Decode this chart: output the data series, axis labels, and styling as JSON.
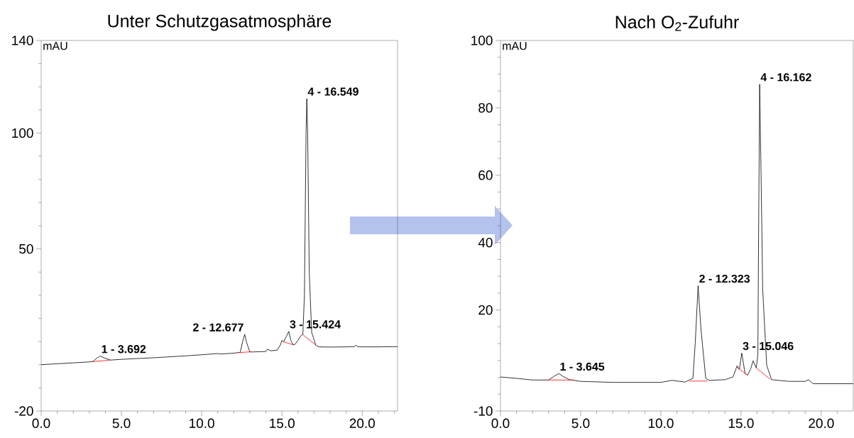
{
  "chart_data": [
    {
      "type": "line",
      "title": "Unter Schutzgasatmosphäre",
      "ylabel": "mAU",
      "xlim": [
        0,
        22.2
      ],
      "ylim": [
        -20,
        140
      ],
      "xticks": [
        {
          "value": 0,
          "label": "0.0"
        },
        {
          "value": 1,
          "label": null
        },
        {
          "value": 2,
          "label": null
        },
        {
          "value": 3,
          "label": null
        },
        {
          "value": 4,
          "label": null
        },
        {
          "value": 5,
          "label": "5.0"
        },
        {
          "value": 6,
          "label": null
        },
        {
          "value": 7,
          "label": null
        },
        {
          "value": 8,
          "label": null
        },
        {
          "value": 9,
          "label": null
        },
        {
          "value": 10,
          "label": "10.0"
        },
        {
          "value": 11,
          "label": null
        },
        {
          "value": 12,
          "label": null
        },
        {
          "value": 13,
          "label": null
        },
        {
          "value": 14,
          "label": null
        },
        {
          "value": 15,
          "label": "15.0"
        },
        {
          "value": 16,
          "label": null
        },
        {
          "value": 17,
          "label": null
        },
        {
          "value": 18,
          "label": null
        },
        {
          "value": 19,
          "label": null
        },
        {
          "value": 20,
          "label": "20.0"
        },
        {
          "value": 21,
          "label": null
        },
        {
          "value": 22,
          "label": null
        }
      ],
      "yticks": [
        -20,
        {
          "value": -10,
          "label": null
        },
        {
          "value": 0,
          "label": null
        },
        {
          "value": 10,
          "label": null
        },
        {
          "value": 20,
          "label": null
        },
        {
          "value": 30,
          "label": null
        },
        {
          "value": 40,
          "label": null
        },
        50,
        {
          "value": 60,
          "label": null
        },
        {
          "value": 70,
          "label": null
        },
        {
          "value": 80,
          "label": null
        },
        {
          "value": 90,
          "label": null
        },
        100,
        {
          "value": 110,
          "label": null
        },
        {
          "value": 120,
          "label": null
        },
        {
          "value": 130,
          "label": null
        },
        140
      ],
      "series": [
        {
          "color": "#000000",
          "x": [
            0,
            1,
            2,
            3,
            3.2,
            3.5,
            3.692,
            3.9,
            4.3,
            5,
            7,
            9,
            10,
            11,
            11.2,
            12,
            12.4,
            12.55,
            12.677,
            12.8,
            13.0,
            13.2,
            14.0,
            14.1,
            14.3,
            14.7,
            14.9,
            15.0,
            15.1,
            15.3,
            15.424,
            15.55,
            15.7,
            15.8,
            16.0,
            16.2,
            16.3,
            16.4,
            16.5,
            16.549,
            16.6,
            16.7,
            16.85,
            17.1,
            17.3,
            18,
            19,
            19.5,
            19.6,
            19.7,
            20,
            21,
            22.2
          ],
          "values": [
            0.0,
            0.4,
            0.8,
            1.2,
            1.3,
            3.0,
            3.7,
            3.0,
            2.0,
            2.3,
            3.0,
            3.8,
            4.3,
            4.8,
            4.6,
            5.0,
            5.3,
            10.0,
            13.1,
            9.5,
            5.5,
            5.5,
            5.7,
            6.7,
            6.0,
            6.3,
            8.5,
            10.5,
            9.9,
            12.5,
            14.4,
            10.5,
            8.6,
            8.7,
            10.5,
            12.7,
            13.0,
            30.0,
            100,
            114.9,
            100,
            40,
            14.0,
            8.5,
            7.7,
            7.6,
            7.7,
            7.8,
            8.4,
            7.8,
            7.7,
            7.7,
            7.8
          ]
        },
        {
          "color": "#ff0000",
          "x": [
            3.2,
            4.3,
            8,
            12.3,
            13.1,
            14,
            15.1,
            15.7,
            16,
            16.3,
            17.1
          ],
          "values": [
            1.3,
            2.0,
            null,
            5.2,
            5.6,
            null,
            9.9,
            8.6,
            null,
            13.0,
            8.5
          ]
        }
      ],
      "annotations": [
        {
          "text": "1 - 3.692",
          "x": 3.692,
          "y": 3.7
        },
        {
          "text": "2 - 12.677",
          "x": 12.677,
          "y": 13.1
        },
        {
          "text": "3 - 15.424",
          "x": 15.424,
          "y": 14.4
        },
        {
          "text": "4 - 16.549",
          "x": 16.549,
          "y": 114.9
        }
      ]
    },
    {
      "type": "line",
      "title": "Nach O$_{2}$-Zufuhr",
      "ylabel": "mAU",
      "xlim": [
        0,
        22
      ],
      "ylim": [
        -10,
        100
      ],
      "xticks": [
        {
          "value": 0,
          "label": "0.0"
        },
        {
          "value": 1,
          "label": null
        },
        {
          "value": 2,
          "label": null
        },
        {
          "value": 3,
          "label": null
        },
        {
          "value": 4,
          "label": null
        },
        {
          "value": 5,
          "label": "5.0"
        },
        {
          "value": 6,
          "label": null
        },
        {
          "value": 7,
          "label": null
        },
        {
          "value": 8,
          "label": null
        },
        {
          "value": 9,
          "label": null
        },
        {
          "value": 10,
          "label": "10.0"
        },
        {
          "value": 11,
          "label": null
        },
        {
          "value": 12,
          "label": null
        },
        {
          "value": 13,
          "label": null
        },
        {
          "value": 14,
          "label": null
        },
        {
          "value": 15,
          "label": "15.0"
        },
        {
          "value": 16,
          "label": null
        },
        {
          "value": 17,
          "label": null
        },
        {
          "value": 18,
          "label": null
        },
        {
          "value": 19,
          "label": null
        },
        {
          "value": 20,
          "label": "20.0"
        },
        {
          "value": 21,
          "label": null
        }
      ],
      "yticks": [
        -10,
        {
          "value": -5,
          "label": null
        },
        {
          "value": 0,
          "label": null
        },
        {
          "value": 5,
          "label": null
        },
        {
          "value": 10,
          "label": null
        },
        {
          "value": 15,
          "label": null
        },
        20,
        {
          "value": 25,
          "label": null
        },
        {
          "value": 30,
          "label": null
        },
        {
          "value": 35,
          "label": null
        },
        40,
        {
          "value": 45,
          "label": null
        },
        {
          "value": 50,
          "label": null
        },
        {
          "value": 55,
          "label": null
        },
        60,
        {
          "value": 65,
          "label": null
        },
        {
          "value": 70,
          "label": null
        },
        {
          "value": 75,
          "label": null
        },
        80,
        {
          "value": 85,
          "label": null
        },
        {
          "value": 90,
          "label": null
        },
        {
          "value": 95,
          "label": null
        },
        100
      ],
      "series": [
        {
          "color": "#000000",
          "x": [
            0,
            1,
            2,
            3,
            3.4,
            3.645,
            3.9,
            4.3,
            5,
            7,
            9,
            10,
            10.7,
            11.5,
            12.0,
            12.15,
            12.323,
            12.5,
            12.8,
            13.0,
            14.0,
            14.5,
            14.75,
            14.9,
            15.046,
            15.25,
            15.4,
            15.6,
            15.75,
            15.95,
            16.05,
            16.1,
            16.162,
            16.25,
            16.35,
            16.6,
            16.9,
            18,
            19,
            19.2,
            19.5,
            22
          ],
          "values": [
            0.1,
            -0.3,
            -0.8,
            -0.8,
            0.5,
            1.1,
            0.3,
            -0.7,
            -1.2,
            -1.5,
            -1.5,
            -1.5,
            -0.9,
            -1.4,
            -0.3,
            10.6,
            27.2,
            14.4,
            -0.3,
            -0.9,
            -0.7,
            0.1,
            3.4,
            2.4,
            7.2,
            1.2,
            0.6,
            2.5,
            4.9,
            2.8,
            6.7,
            45,
            87.0,
            60,
            26.1,
            3.6,
            -0.7,
            -1.2,
            -1.2,
            -0.7,
            -1.9,
            -1.9
          ]
        },
        {
          "color": "#ff0000",
          "x": [
            2.9,
            4.6,
            8,
            11.8,
            12.9,
            14,
            14.75,
            15.4,
            15.6,
            15.95,
            16.8
          ],
          "values": [
            -0.8,
            -0.8,
            null,
            -1.1,
            -1.1,
            null,
            3.0,
            0.6,
            null,
            2.8,
            -0.5
          ]
        }
      ],
      "annotations": [
        {
          "text": "1 - 3.645",
          "x": 3.645,
          "y": 1.1
        },
        {
          "text": "2 - 12.323",
          "x": 12.323,
          "y": 27.2
        },
        {
          "text": "3 - 15.046",
          "x": 15.046,
          "y": 7.2
        },
        {
          "text": "4 - 16.162",
          "x": 16.162,
          "y": 87.0
        }
      ]
    }
  ]
}
